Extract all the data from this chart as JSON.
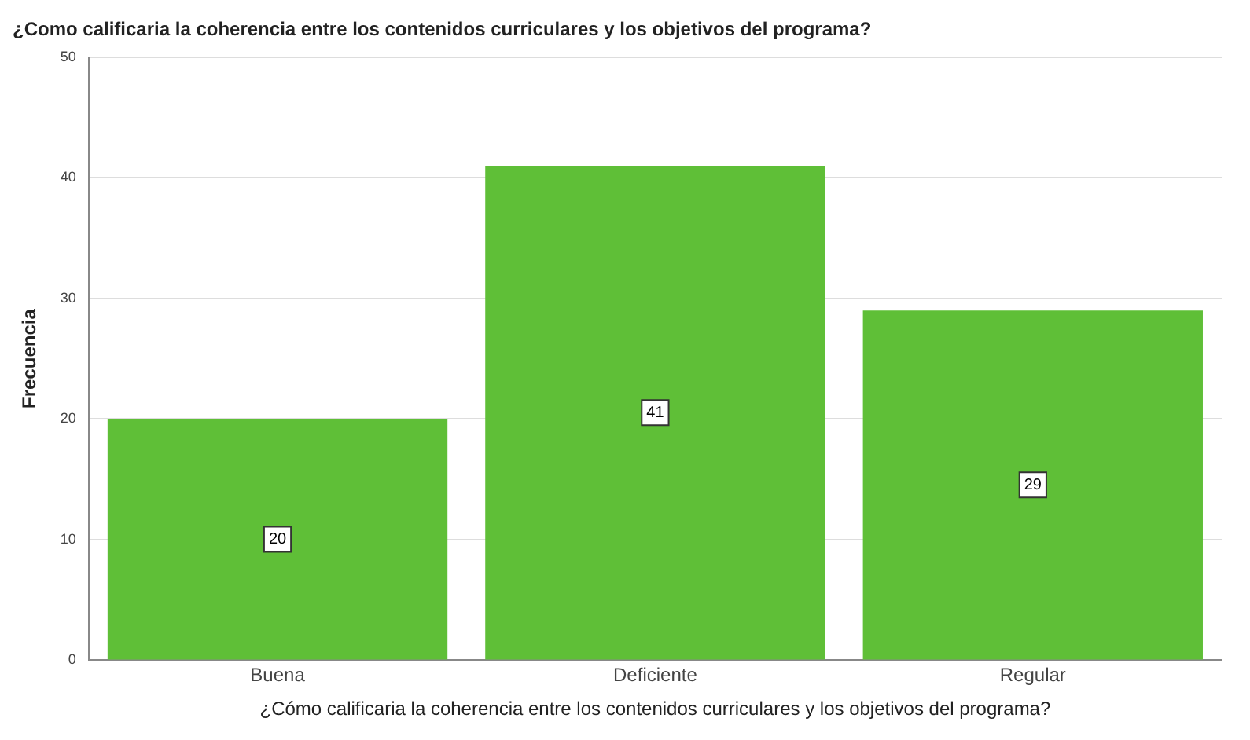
{
  "chart_data": {
    "type": "bar",
    "title": "¿Como calificaria la coherencia entre los contenidos curriculares y los objetivos del programa?",
    "xlabel": "¿Cómo calificaria la coherencia entre los contenidos curriculares y los objetivos del programa?",
    "ylabel": "Frecuencia",
    "categories": [
      "Buena",
      "Deficiente",
      "Regular"
    ],
    "values": [
      20,
      41,
      29
    ],
    "color": "#5fbf37",
    "ylim": [
      0,
      50
    ],
    "yticks": [
      0,
      10,
      20,
      30,
      40,
      50
    ],
    "grid": "y",
    "legend": false,
    "data_labels": true
  }
}
